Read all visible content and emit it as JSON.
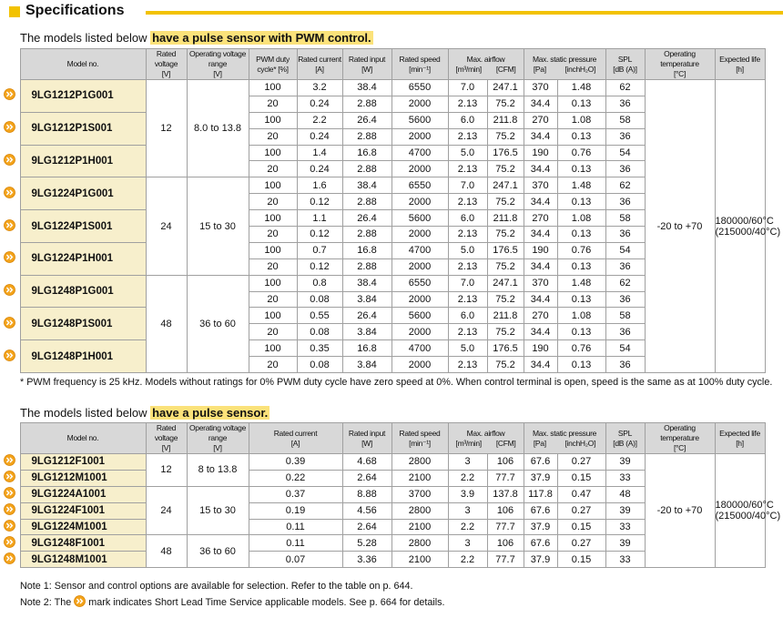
{
  "header": {
    "title": "Specifications"
  },
  "table1": {
    "intro": "The models listed below",
    "highlight": "have a pulse sensor with PWM control.",
    "headers": [
      {
        "label": "Model no."
      },
      {
        "label": "Rated voltage",
        "unit": "[V]"
      },
      {
        "label": "Operating voltage range",
        "unit": "[V]"
      },
      {
        "label": "PWM duty",
        "unit": "cycle* [%]"
      },
      {
        "label": "Rated current",
        "unit": "[A]"
      },
      {
        "label": "Rated input",
        "unit": "[W]"
      },
      {
        "label": "Rated speed",
        "unit": "[min⁻¹]"
      },
      {
        "label": "Max. airflow",
        "units": [
          "[m³/min]",
          "[CFM]"
        ]
      },
      {
        "label": "Max. static pressure",
        "units": [
          "[Pa]",
          "[inchH₂O]"
        ]
      },
      {
        "label": "SPL",
        "unit": "[dB (A)]"
      },
      {
        "label": "Operating temperature",
        "unit": "[°C]"
      },
      {
        "label": "Expected life",
        "unit": "[h]"
      }
    ],
    "temperature": "-20 to +70",
    "life": [
      "180000/60°C",
      "(215000/40°C)"
    ],
    "groups": [
      {
        "voltage": "12",
        "range": "8.0 to 13.8",
        "models": [
          {
            "name": "9LG1212P1G001",
            "rows": [
              [
                "100",
                "3.2",
                "38.4",
                "6550",
                "7.0",
                "247.1",
                "370",
                "1.48",
                "62"
              ],
              [
                "20",
                "0.24",
                "2.88",
                "2000",
                "2.13",
                "75.2",
                "34.4",
                "0.13",
                "36"
              ]
            ]
          },
          {
            "name": "9LG1212P1S001",
            "rows": [
              [
                "100",
                "2.2",
                "26.4",
                "5600",
                "6.0",
                "211.8",
                "270",
                "1.08",
                "58"
              ],
              [
                "20",
                "0.24",
                "2.88",
                "2000",
                "2.13",
                "75.2",
                "34.4",
                "0.13",
                "36"
              ]
            ]
          },
          {
            "name": "9LG1212P1H001",
            "rows": [
              [
                "100",
                "1.4",
                "16.8",
                "4700",
                "5.0",
                "176.5",
                "190",
                "0.76",
                "54"
              ],
              [
                "20",
                "0.24",
                "2.88",
                "2000",
                "2.13",
                "75.2",
                "34.4",
                "0.13",
                "36"
              ]
            ]
          }
        ]
      },
      {
        "voltage": "24",
        "range": "15 to 30",
        "models": [
          {
            "name": "9LG1224P1G001",
            "rows": [
              [
                "100",
                "1.6",
                "38.4",
                "6550",
                "7.0",
                "247.1",
                "370",
                "1.48",
                "62"
              ],
              [
                "20",
                "0.12",
                "2.88",
                "2000",
                "2.13",
                "75.2",
                "34.4",
                "0.13",
                "36"
              ]
            ]
          },
          {
            "name": "9LG1224P1S001",
            "rows": [
              [
                "100",
                "1.1",
                "26.4",
                "5600",
                "6.0",
                "211.8",
                "270",
                "1.08",
                "58"
              ],
              [
                "20",
                "0.12",
                "2.88",
                "2000",
                "2.13",
                "75.2",
                "34.4",
                "0.13",
                "36"
              ]
            ]
          },
          {
            "name": "9LG1224P1H001",
            "rows": [
              [
                "100",
                "0.7",
                "16.8",
                "4700",
                "5.0",
                "176.5",
                "190",
                "0.76",
                "54"
              ],
              [
                "20",
                "0.12",
                "2.88",
                "2000",
                "2.13",
                "75.2",
                "34.4",
                "0.13",
                "36"
              ]
            ]
          }
        ]
      },
      {
        "voltage": "48",
        "range": "36 to 60",
        "models": [
          {
            "name": "9LG1248P1G001",
            "rows": [
              [
                "100",
                "0.8",
                "38.4",
                "6550",
                "7.0",
                "247.1",
                "370",
                "1.48",
                "62"
              ],
              [
                "20",
                "0.08",
                "3.84",
                "2000",
                "2.13",
                "75.2",
                "34.4",
                "0.13",
                "36"
              ]
            ]
          },
          {
            "name": "9LG1248P1S001",
            "rows": [
              [
                "100",
                "0.55",
                "26.4",
                "5600",
                "6.0",
                "211.8",
                "270",
                "1.08",
                "58"
              ],
              [
                "20",
                "0.08",
                "3.84",
                "2000",
                "2.13",
                "75.2",
                "34.4",
                "0.13",
                "36"
              ]
            ]
          },
          {
            "name": "9LG1248P1H001",
            "rows": [
              [
                "100",
                "0.35",
                "16.8",
                "4700",
                "5.0",
                "176.5",
                "190",
                "0.76",
                "54"
              ],
              [
                "20",
                "0.08",
                "3.84",
                "2000",
                "2.13",
                "75.2",
                "34.4",
                "0.13",
                "36"
              ]
            ]
          }
        ]
      }
    ],
    "footnote": "* PWM frequency is 25 kHz. Models without ratings for 0% PWM duty cycle have zero speed at 0%. When control terminal is open, speed is the same as at 100% duty cycle."
  },
  "table2": {
    "intro": "The models listed below",
    "highlight": "have a pulse sensor.",
    "headers": [
      {
        "label": "Model no."
      },
      {
        "label": "Rated voltage",
        "unit": "[V]"
      },
      {
        "label": "Operating voltage range",
        "unit": "[V]"
      },
      {
        "label": "Rated current",
        "unit": "[A]"
      },
      {
        "label": "Rated input",
        "unit": "[W]"
      },
      {
        "label": "Rated speed",
        "unit": "[min⁻¹]"
      },
      {
        "label": "Max. airflow",
        "units": [
          "[m³/min]",
          "[CFM]"
        ]
      },
      {
        "label": "Max. static pressure",
        "units": [
          "[Pa]",
          "[inchH₂O]"
        ]
      },
      {
        "label": "SPL",
        "unit": "[dB (A)]"
      },
      {
        "label": "Operating temperature",
        "unit": "[°C]"
      },
      {
        "label": "Expected life",
        "unit": "[h]"
      }
    ],
    "temperature": "-20 to +70",
    "life": [
      "180000/60°C",
      "(215000/40°C)"
    ],
    "groups": [
      {
        "voltage": "12",
        "range": "8 to 13.8",
        "models": [
          {
            "name": "9LG1212F1001",
            "rows": [
              [
                "0.39",
                "4.68",
                "2800",
                "3",
                "106",
                "67.6",
                "0.27",
                "39"
              ]
            ]
          },
          {
            "name": "9LG1212M1001",
            "rows": [
              [
                "0.22",
                "2.64",
                "2100",
                "2.2",
                "77.7",
                "37.9",
                "0.15",
                "33"
              ]
            ]
          }
        ]
      },
      {
        "voltage": "24",
        "range": "15 to 30",
        "models": [
          {
            "name": "9LG1224A1001",
            "rows": [
              [
                "0.37",
                "8.88",
                "3700",
                "3.9",
                "137.8",
                "117.8",
                "0.47",
                "48"
              ]
            ]
          },
          {
            "name": "9LG1224F1001",
            "rows": [
              [
                "0.19",
                "4.56",
                "2800",
                "3",
                "106",
                "67.6",
                "0.27",
                "39"
              ]
            ]
          },
          {
            "name": "9LG1224M1001",
            "rows": [
              [
                "0.11",
                "2.64",
                "2100",
                "2.2",
                "77.7",
                "37.9",
                "0.15",
                "33"
              ]
            ]
          }
        ]
      },
      {
        "voltage": "48",
        "range": "36 to 60",
        "models": [
          {
            "name": "9LG1248F1001",
            "rows": [
              [
                "0.11",
                "5.28",
                "2800",
                "3",
                "106",
                "67.6",
                "0.27",
                "39"
              ]
            ]
          },
          {
            "name": "9LG1248M1001",
            "rows": [
              [
                "0.07",
                "3.36",
                "2100",
                "2.2",
                "77.7",
                "37.9",
                "0.15",
                "33"
              ]
            ]
          }
        ]
      }
    ]
  },
  "notes": {
    "note1": "Note 1: Sensor and control options are available for selection. Refer to the table on p. 644.",
    "note2_before": "Note 2: The",
    "note2_after": "mark indicates Short Lead Time Service applicable models. See p. 664 for details."
  }
}
